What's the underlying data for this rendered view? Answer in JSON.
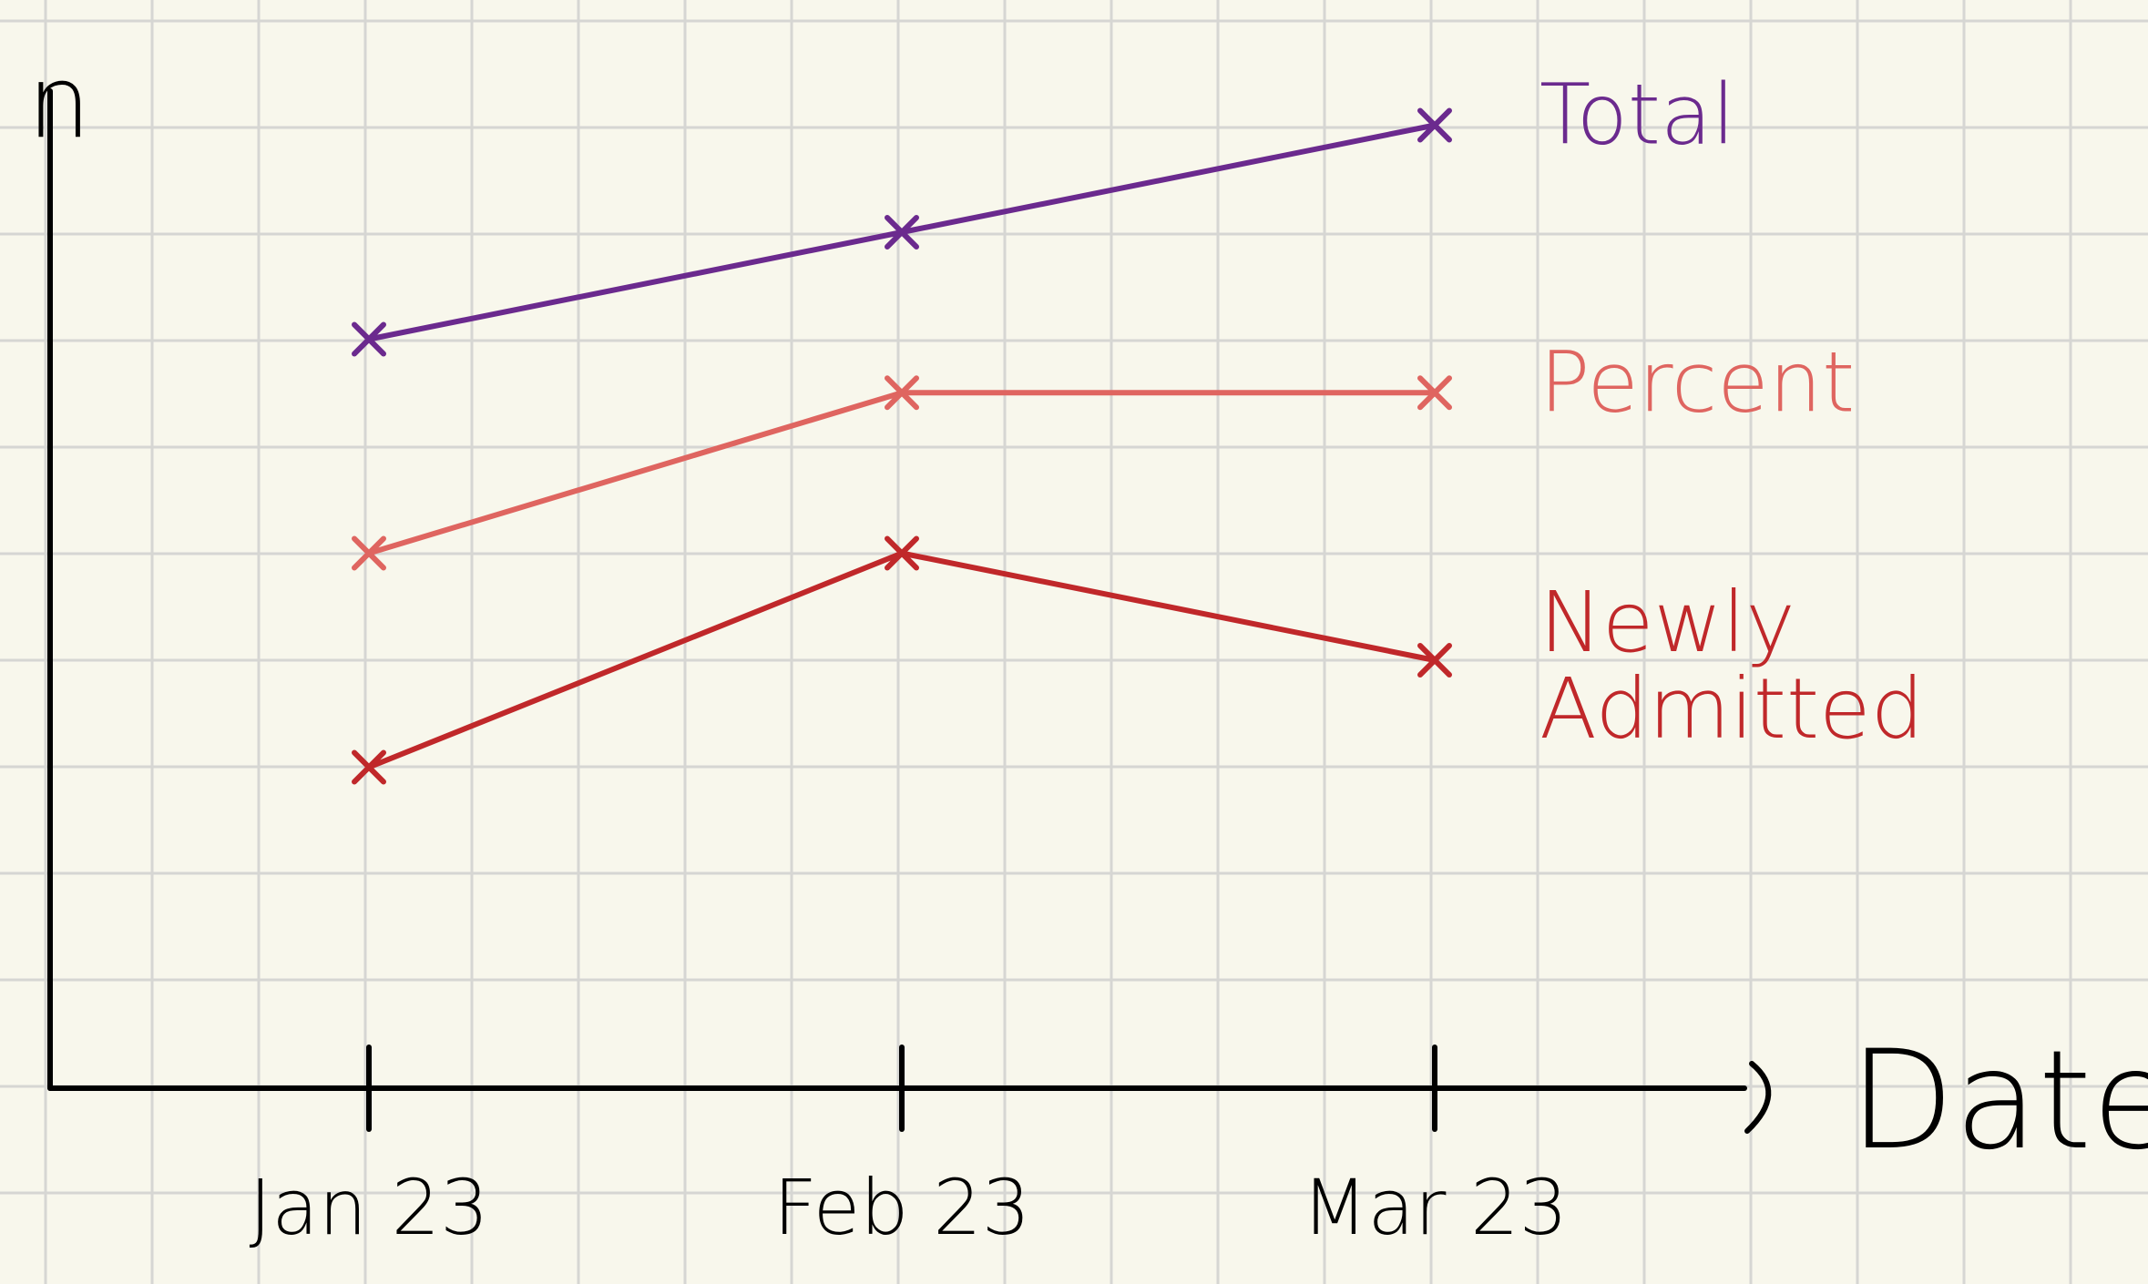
{
  "chart_data": {
    "type": "line",
    "xlabel": "Date",
    "ylabel": "n",
    "categories": [
      "Jan 23",
      "Feb 23",
      "Mar 23"
    ],
    "grid": true,
    "legend": "right, labels at line ends",
    "series": [
      {
        "name": "Total",
        "values": [
          7,
          8,
          9
        ],
        "color": "#6b2a8e"
      },
      {
        "name": "Percent",
        "values": [
          5,
          6.5,
          6.5
        ],
        "color": "#df6560"
      },
      {
        "name": "Newly Admitted",
        "values": [
          3,
          5,
          4
        ],
        "color": "#c0282a"
      }
    ],
    "ylim": [
      0,
      10
    ]
  }
}
